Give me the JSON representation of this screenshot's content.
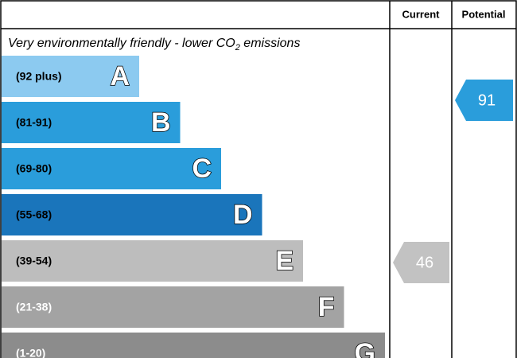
{
  "header": {
    "current": "Current",
    "potential": "Potential"
  },
  "subtitle": {
    "text": "Very environmentally friendly - lower CO",
    "subscript": "2",
    "suffix": " emissions"
  },
  "bands": [
    {
      "range": "(92 plus)",
      "letter": "A"
    },
    {
      "range": "(81-91)",
      "letter": "B"
    },
    {
      "range": "(69-80)",
      "letter": "C"
    },
    {
      "range": "(55-68)",
      "letter": "D"
    },
    {
      "range": "(39-54)",
      "letter": "E"
    },
    {
      "range": "(21-38)",
      "letter": "F"
    },
    {
      "range": "(1-20)",
      "letter": "G"
    }
  ],
  "current": 46,
  "potential": 91
}
